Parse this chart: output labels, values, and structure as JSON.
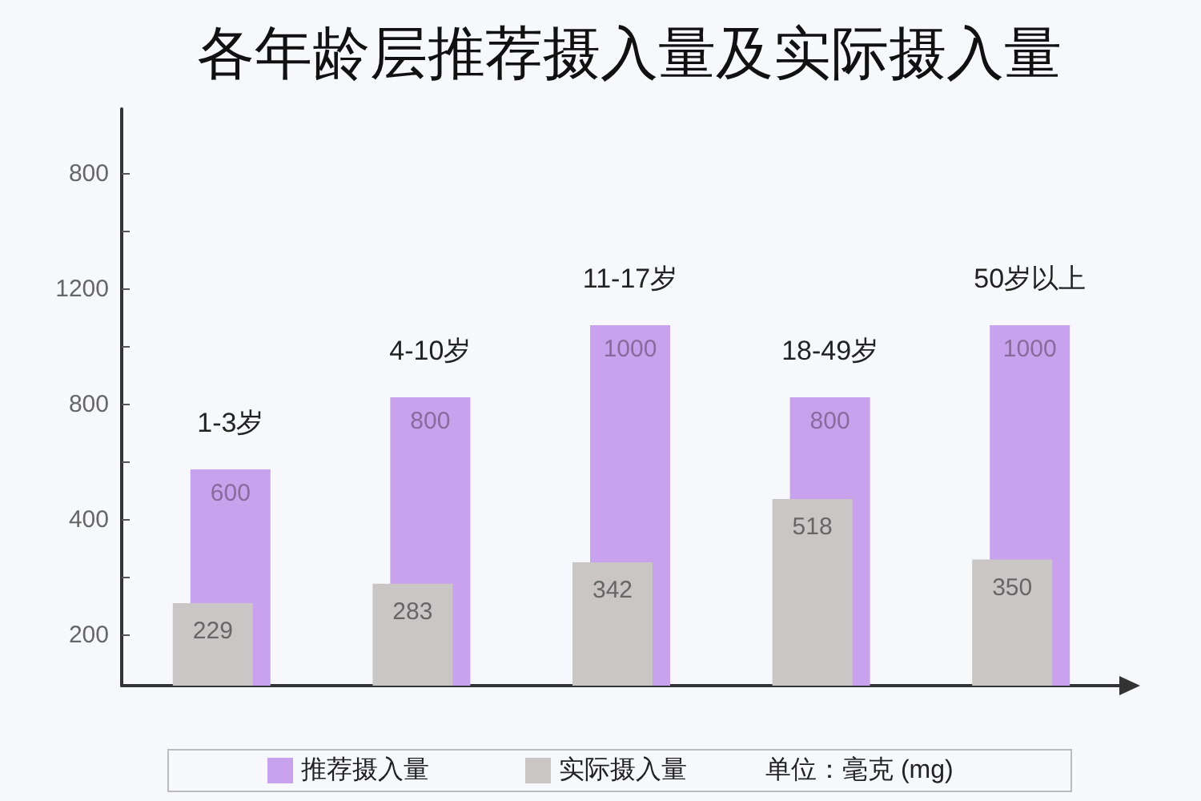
{
  "chart_data": {
    "type": "bar",
    "title": "各年龄层推荐摄入量及实际摄入量",
    "categories": [
      "1-3岁",
      "4-10岁",
      "11-17岁",
      "18-49岁",
      "50岁以上"
    ],
    "series": [
      {
        "name": "推荐摄入量",
        "color": "#c9a2ee",
        "values": [
          600,
          800,
          1000,
          800,
          1000
        ]
      },
      {
        "name": "实际摄入量",
        "color": "#cbc6c6",
        "values": [
          229,
          283,
          342,
          518,
          350
        ]
      }
    ],
    "ylim": [
      0,
      1600
    ],
    "yticks": [
      {
        "value": 140,
        "label": null
      },
      {
        "value": 300,
        "label": null
      },
      {
        "value": 460,
        "label": null
      },
      {
        "value": 620,
        "label": null
      },
      {
        "value": 780,
        "label": null
      },
      {
        "value": 940,
        "label": null
      },
      {
        "value": 1100,
        "label": null
      },
      {
        "value": 1260,
        "label": null
      },
      {
        "value": 1420,
        "label": null
      }
    ],
    "tick_labels": false,
    "data_labels": true,
    "legend": "bottom",
    "annotations": [
      "200",
      "400",
      "800",
      "1200",
      "800",
      "单位：毫克 (mg)"
    ]
  }
}
